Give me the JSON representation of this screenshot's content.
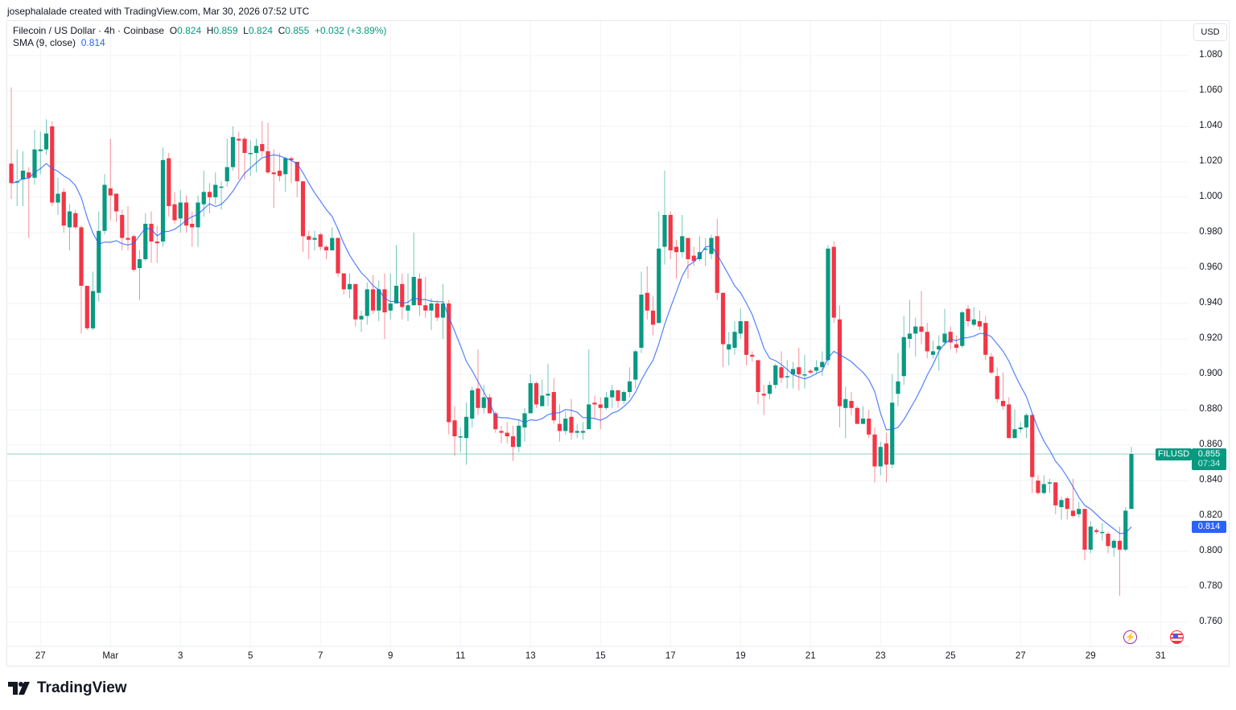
{
  "credit": "josephalalade created with TradingView.com, Mar 30, 2026 07:52 UTC",
  "legend": {
    "symbol": "Filecoin / US Dollar · 4h · Coinbase",
    "o_label": "O",
    "o": "0.824",
    "h_label": "H",
    "h": "0.859",
    "l_label": "L",
    "l": "0.824",
    "c_label": "C",
    "c": "0.855",
    "change": "+0.032 (+3.89%)",
    "sma_label": "SMA (9, close)",
    "sma_value": "0.814"
  },
  "currency_button": "USD",
  "last_price": {
    "symbol": "FILUSD",
    "price": "0.855",
    "countdown": "07:34"
  },
  "sma_tag": "0.814",
  "footer_logo": "TradingView",
  "icons": {
    "event1": "lightning-icon",
    "event2": "us-flag-icon"
  },
  "colors": {
    "up": "#089981",
    "down": "#f23645",
    "sma": "#2962ff",
    "last_price_line": "#089981"
  },
  "chart_data": {
    "type": "candlestick",
    "symbol": "FILUSD",
    "interval": "4h",
    "first_candle_time": "2026-02-26 04:00",
    "ylim": [
      0.75,
      1.09
    ],
    "y_ticks": [
      "0.760",
      "0.780",
      "0.800",
      "0.820",
      "0.840",
      "0.860",
      "0.880",
      "0.900",
      "0.920",
      "0.940",
      "0.960",
      "0.980",
      "1.000",
      "1.020",
      "1.040",
      "1.060",
      "1.080"
    ],
    "x_ticks": [
      {
        "label": "27",
        "date": "2026-02-27"
      },
      {
        "label": "Mar",
        "date": "2026-03-01"
      },
      {
        "label": "3",
        "date": "2026-03-03"
      },
      {
        "label": "5",
        "date": "2026-03-05"
      },
      {
        "label": "7",
        "date": "2026-03-07"
      },
      {
        "label": "9",
        "date": "2026-03-09"
      },
      {
        "label": "11",
        "date": "2026-03-11"
      },
      {
        "label": "13",
        "date": "2026-03-13"
      },
      {
        "label": "15",
        "date": "2026-03-15"
      },
      {
        "label": "17",
        "date": "2026-03-17"
      },
      {
        "label": "19",
        "date": "2026-03-19"
      },
      {
        "label": "21",
        "date": "2026-03-21"
      },
      {
        "label": "23",
        "date": "2026-03-23"
      },
      {
        "label": "25",
        "date": "2026-03-25"
      },
      {
        "label": "27",
        "date": "2026-03-27"
      },
      {
        "label": "29",
        "date": "2026-03-29"
      },
      {
        "label": "31",
        "date": "2026-03-31"
      }
    ],
    "grid": true,
    "indicator": {
      "type": "SMA",
      "length": 9,
      "source": "close"
    },
    "last_price": 0.855,
    "ohlc": [
      [
        1.019,
        1.062,
        0.999,
        1.008
      ],
      [
        1.009,
        1.027,
        0.995,
        1.009
      ],
      [
        1.01,
        1.026,
        0.995,
        1.015
      ],
      [
        1.014,
        1.017,
        0.977,
        1.011
      ],
      [
        1.011,
        1.038,
        1.007,
        1.027
      ],
      [
        1.026,
        1.037,
        1.013,
        1.027
      ],
      [
        1.027,
        1.044,
        1.024,
        1.036
      ],
      [
        1.04,
        1.043,
        0.995,
        0.997
      ],
      [
        0.997,
        1.011,
        0.99,
        1.002
      ],
      [
        1.003,
        1.005,
        0.98,
        0.984
      ],
      [
        0.983,
        0.996,
        0.97,
        0.992
      ],
      [
        0.991,
        0.993,
        0.982,
        0.983
      ],
      [
        0.983,
        0.984,
        0.923,
        0.95
      ],
      [
        0.95,
        0.95,
        0.925,
        0.926
      ],
      [
        0.926,
        0.958,
        0.925,
        0.947
      ],
      [
        0.946,
        0.992,
        0.941,
        0.981
      ],
      [
        0.981,
        1.013,
        0.979,
        1.007
      ],
      [
        1.005,
        1.033,
        0.987,
        1.001
      ],
      [
        1.002,
        1.002,
        0.986,
        0.992
      ],
      [
        0.99,
        0.993,
        0.97,
        0.977
      ],
      [
        0.977,
        0.995,
        0.97,
        0.976
      ],
      [
        0.978,
        0.979,
        0.958,
        0.959
      ],
      [
        0.96,
        0.97,
        0.942,
        0.965
      ],
      [
        0.965,
        0.991,
        0.964,
        0.985
      ],
      [
        0.985,
        0.992,
        0.963,
        0.975
      ],
      [
        0.975,
        0.984,
        0.963,
        0.974
      ],
      [
        0.975,
        1.028,
        0.972,
        1.021
      ],
      [
        1.022,
        1.025,
        0.989,
        0.995
      ],
      [
        0.996,
        1.003,
        0.985,
        0.987
      ],
      [
        0.988,
        1.004,
        0.98,
        0.997
      ],
      [
        0.997,
        1.001,
        0.98,
        0.984
      ],
      [
        0.985,
        0.992,
        0.972,
        0.983
      ],
      [
        0.983,
        1.001,
        0.972,
        0.997
      ],
      [
        0.996,
        1.015,
        0.989,
        1.003
      ],
      [
        1.003,
        1.008,
        0.991,
        1.0
      ],
      [
        1.0,
        1.014,
        0.996,
        1.007
      ],
      [
        1.006,
        1.009,
        0.993,
        1.006
      ],
      [
        1.009,
        1.033,
        1.006,
        1.017
      ],
      [
        1.017,
        1.04,
        1.015,
        1.034
      ],
      [
        1.033,
        1.037,
        1.01,
        1.032
      ],
      [
        1.033,
        1.034,
        1.01,
        1.025
      ],
      [
        1.025,
        1.032,
        1.012,
        1.025
      ],
      [
        1.025,
        1.033,
        1.014,
        1.029
      ],
      [
        1.03,
        1.043,
        1.023,
        1.026
      ],
      [
        1.026,
        1.042,
        1.013,
        1.014
      ],
      [
        1.014,
        1.027,
        0.994,
        1.013
      ],
      [
        1.015,
        1.025,
        1.009,
        1.012
      ],
      [
        1.013,
        1.023,
        1.003,
        1.022
      ],
      [
        1.022,
        1.023,
        1.008,
        1.021
      ],
      [
        1.02,
        1.02,
        1.0,
        1.009
      ],
      [
        1.009,
        1.009,
        0.969,
        0.978
      ],
      [
        0.978,
        0.981,
        0.965,
        0.976
      ],
      [
        0.976,
        0.981,
        0.97,
        0.977
      ],
      [
        0.979,
        0.98,
        0.97,
        0.972
      ],
      [
        0.972,
        0.973,
        0.965,
        0.97
      ],
      [
        0.97,
        0.983,
        0.97,
        0.977
      ],
      [
        0.977,
        0.977,
        0.955,
        0.957
      ],
      [
        0.957,
        0.957,
        0.945,
        0.948
      ],
      [
        0.948,
        0.957,
        0.943,
        0.951
      ],
      [
        0.951,
        0.951,
        0.927,
        0.931
      ],
      [
        0.931,
        0.936,
        0.924,
        0.933
      ],
      [
        0.933,
        0.952,
        0.928,
        0.948
      ],
      [
        0.948,
        0.956,
        0.934,
        0.936
      ],
      [
        0.936,
        0.953,
        0.93,
        0.948
      ],
      [
        0.948,
        0.957,
        0.92,
        0.935
      ],
      [
        0.936,
        0.957,
        0.931,
        0.94
      ],
      [
        0.94,
        0.973,
        0.94,
        0.95
      ],
      [
        0.951,
        0.957,
        0.931,
        0.938
      ],
      [
        0.936,
        0.957,
        0.93,
        0.939
      ],
      [
        0.939,
        0.98,
        0.939,
        0.955
      ],
      [
        0.954,
        0.957,
        0.933,
        0.939
      ],
      [
        0.939,
        0.955,
        0.932,
        0.936
      ],
      [
        0.936,
        0.943,
        0.925,
        0.94
      ],
      [
        0.94,
        0.942,
        0.93,
        0.932
      ],
      [
        0.932,
        0.951,
        0.92,
        0.94
      ],
      [
        0.94,
        0.942,
        0.866,
        0.873
      ],
      [
        0.874,
        0.882,
        0.854,
        0.865
      ],
      [
        0.865,
        0.87,
        0.856,
        0.865
      ],
      [
        0.864,
        0.884,
        0.849,
        0.876
      ],
      [
        0.875,
        0.893,
        0.87,
        0.891
      ],
      [
        0.892,
        0.914,
        0.877,
        0.881
      ],
      [
        0.881,
        0.894,
        0.878,
        0.887
      ],
      [
        0.887,
        0.889,
        0.878,
        0.878
      ],
      [
        0.878,
        0.879,
        0.867,
        0.869
      ],
      [
        0.868,
        0.871,
        0.861,
        0.867
      ],
      [
        0.867,
        0.873,
        0.861,
        0.865
      ],
      [
        0.865,
        0.871,
        0.851,
        0.859
      ],
      [
        0.859,
        0.874,
        0.856,
        0.871
      ],
      [
        0.87,
        0.881,
        0.862,
        0.878
      ],
      [
        0.878,
        0.9,
        0.878,
        0.895
      ],
      [
        0.895,
        0.896,
        0.881,
        0.883
      ],
      [
        0.882,
        0.897,
        0.882,
        0.888
      ],
      [
        0.888,
        0.906,
        0.882,
        0.889
      ],
      [
        0.89,
        0.898,
        0.872,
        0.874
      ],
      [
        0.872,
        0.883,
        0.862,
        0.868
      ],
      [
        0.868,
        0.879,
        0.866,
        0.875
      ],
      [
        0.876,
        0.886,
        0.863,
        0.867
      ],
      [
        0.867,
        0.872,
        0.864,
        0.868
      ],
      [
        0.867,
        0.873,
        0.863,
        0.868
      ],
      [
        0.869,
        0.914,
        0.869,
        0.883
      ],
      [
        0.884,
        0.888,
        0.875,
        0.883
      ],
      [
        0.883,
        0.887,
        0.869,
        0.881
      ],
      [
        0.881,
        0.89,
        0.88,
        0.887
      ],
      [
        0.887,
        0.894,
        0.881,
        0.891
      ],
      [
        0.891,
        0.891,
        0.881,
        0.885
      ],
      [
        0.885,
        0.891,
        0.883,
        0.89
      ],
      [
        0.89,
        0.904,
        0.887,
        0.896
      ],
      [
        0.897,
        0.914,
        0.892,
        0.913
      ],
      [
        0.915,
        0.958,
        0.912,
        0.945
      ],
      [
        0.946,
        0.961,
        0.931,
        0.936
      ],
      [
        0.936,
        0.944,
        0.922,
        0.928
      ],
      [
        0.929,
        0.992,
        0.929,
        0.971
      ],
      [
        0.972,
        1.015,
        0.962,
        0.99
      ],
      [
        0.99,
        0.992,
        0.965,
        0.97
      ],
      [
        0.972,
        0.976,
        0.954,
        0.969
      ],
      [
        0.969,
        0.99,
        0.966,
        0.978
      ],
      [
        0.977,
        0.977,
        0.954,
        0.965
      ],
      [
        0.967,
        0.972,
        0.961,
        0.964
      ],
      [
        0.965,
        0.978,
        0.964,
        0.969
      ],
      [
        0.971,
        0.977,
        0.961,
        0.971
      ],
      [
        0.968,
        0.979,
        0.965,
        0.977
      ],
      [
        0.978,
        0.988,
        0.942,
        0.946
      ],
      [
        0.946,
        0.946,
        0.904,
        0.917
      ],
      [
        0.914,
        0.924,
        0.905,
        0.917
      ],
      [
        0.915,
        0.93,
        0.911,
        0.924
      ],
      [
        0.923,
        0.937,
        0.92,
        0.93
      ],
      [
        0.93,
        0.93,
        0.905,
        0.911
      ],
      [
        0.911,
        0.913,
        0.907,
        0.91
      ],
      [
        0.908,
        0.908,
        0.883,
        0.89
      ],
      [
        0.889,
        0.894,
        0.877,
        0.888
      ],
      [
        0.889,
        0.896,
        0.886,
        0.894
      ],
      [
        0.894,
        0.906,
        0.892,
        0.905
      ],
      [
        0.904,
        0.913,
        0.895,
        0.898
      ],
      [
        0.899,
        0.908,
        0.892,
        0.899
      ],
      [
        0.9,
        0.907,
        0.892,
        0.903
      ],
      [
        0.904,
        0.915,
        0.891,
        0.9
      ],
      [
        0.9,
        0.911,
        0.892,
        0.9
      ],
      [
        0.902,
        0.903,
        0.9,
        0.901
      ],
      [
        0.902,
        0.908,
        0.9,
        0.904
      ],
      [
        0.904,
        0.913,
        0.899,
        0.907
      ],
      [
        0.908,
        0.973,
        0.905,
        0.971
      ],
      [
        0.972,
        0.975,
        0.929,
        0.932
      ],
      [
        0.931,
        0.939,
        0.87,
        0.882
      ],
      [
        0.881,
        0.893,
        0.864,
        0.886
      ],
      [
        0.885,
        0.89,
        0.877,
        0.881
      ],
      [
        0.881,
        0.882,
        0.872,
        0.872
      ],
      [
        0.872,
        0.882,
        0.872,
        0.875
      ],
      [
        0.875,
        0.88,
        0.864,
        0.866
      ],
      [
        0.866,
        0.87,
        0.839,
        0.848
      ],
      [
        0.848,
        0.862,
        0.843,
        0.859
      ],
      [
        0.861,
        0.867,
        0.839,
        0.849
      ],
      [
        0.849,
        0.9,
        0.847,
        0.884
      ],
      [
        0.889,
        0.912,
        0.882,
        0.896
      ],
      [
        0.899,
        0.933,
        0.894,
        0.921
      ],
      [
        0.92,
        0.942,
        0.915,
        0.923
      ],
      [
        0.923,
        0.932,
        0.91,
        0.927
      ],
      [
        0.927,
        0.947,
        0.917,
        0.924
      ],
      [
        0.924,
        0.929,
        0.909,
        0.913
      ],
      [
        0.911,
        0.919,
        0.909,
        0.913
      ],
      [
        0.914,
        0.922,
        0.902,
        0.916
      ],
      [
        0.918,
        0.937,
        0.916,
        0.923
      ],
      [
        0.924,
        0.927,
        0.914,
        0.918
      ],
      [
        0.917,
        0.922,
        0.912,
        0.915
      ],
      [
        0.916,
        0.936,
        0.915,
        0.935
      ],
      [
        0.937,
        0.939,
        0.927,
        0.93
      ],
      [
        0.928,
        0.938,
        0.927,
        0.931
      ],
      [
        0.93,
        0.936,
        0.925,
        0.927
      ],
      [
        0.929,
        0.933,
        0.908,
        0.911
      ],
      [
        0.91,
        0.912,
        0.9,
        0.901
      ],
      [
        0.899,
        0.904,
        0.884,
        0.886
      ],
      [
        0.885,
        0.901,
        0.88,
        0.882
      ],
      [
        0.883,
        0.887,
        0.864,
        0.864
      ],
      [
        0.864,
        0.88,
        0.864,
        0.869
      ],
      [
        0.869,
        0.873,
        0.867,
        0.87
      ],
      [
        0.87,
        0.878,
        0.864,
        0.877
      ],
      [
        0.877,
        0.878,
        0.833,
        0.842
      ],
      [
        0.84,
        0.843,
        0.832,
        0.833
      ],
      [
        0.833,
        0.843,
        0.832,
        0.838
      ],
      [
        0.839,
        0.841,
        0.833,
        0.839
      ],
      [
        0.839,
        0.839,
        0.821,
        0.826
      ],
      [
        0.825,
        0.831,
        0.818,
        0.829
      ],
      [
        0.83,
        0.831,
        0.818,
        0.824
      ],
      [
        0.823,
        0.841,
        0.819,
        0.82
      ],
      [
        0.821,
        0.828,
        0.819,
        0.824
      ],
      [
        0.824,
        0.824,
        0.795,
        0.801
      ],
      [
        0.801,
        0.817,
        0.799,
        0.814
      ],
      [
        0.812,
        0.813,
        0.81,
        0.811
      ],
      [
        0.811,
        0.816,
        0.806,
        0.811
      ],
      [
        0.81,
        0.811,
        0.799,
        0.803
      ],
      [
        0.802,
        0.807,
        0.797,
        0.806
      ],
      [
        0.806,
        0.814,
        0.775,
        0.801
      ],
      [
        0.801,
        0.825,
        0.8,
        0.823
      ],
      [
        0.824,
        0.859,
        0.824,
        0.855
      ]
    ]
  }
}
